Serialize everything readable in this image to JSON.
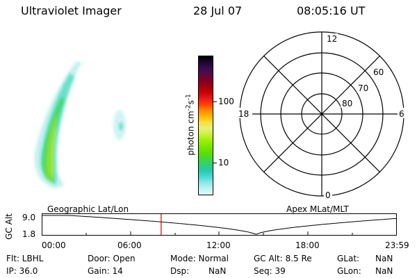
{
  "header": {
    "instrument": "Ultraviolet Imager",
    "date": "28 Jul 07",
    "time": "08:05:16 UT"
  },
  "colorbar": {
    "label": "photon cm",
    "label_sup1": "-2",
    "label_mid": "s",
    "label_sup2": "-1",
    "tick_100": "100",
    "tick_10": "10",
    "colors": [
      "#000000",
      "#1a0830",
      "#3a0a50",
      "#5a0a40",
      "#800020",
      "#a00010",
      "#c80000",
      "#e81818",
      "#ff4000",
      "#ff8a00",
      "#ffb800",
      "#f5e040",
      "#e6f07a",
      "#c8f23a",
      "#9cf000",
      "#78e800",
      "#5ce000",
      "#40d838",
      "#30d07a",
      "#28c8b0",
      "#48d8d0",
      "#8ae8e8",
      "#c0f2f2",
      "#e4f8f8"
    ]
  },
  "polar": {
    "mlt_12": "12",
    "mlt_18": "18",
    "mlt_6": "6",
    "mlt_0": "0",
    "lat_60": "60",
    "lat_70": "70",
    "lat_80": "80"
  },
  "altplot": {
    "left_title": "Geographic Lat/Lon",
    "right_title": "Apex MLat/MLT",
    "ylabel": "GC Alt",
    "y_top": "9.0",
    "y_bottom": "1.8",
    "x_ticks": [
      "00:00",
      "06:00",
      "12:00",
      "18:00",
      "23:59"
    ],
    "marker_hour": 8.088,
    "marker_color": "#cc0000"
  },
  "info": {
    "flt": "Flt: LBHL",
    "door": "Door: Open",
    "mode": "Mode: Normal",
    "gcalt": "GC Alt: 8.5 Re",
    "glat_label": "GLat:",
    "glat_val": "NaN",
    "ip": "IP: 36.0",
    "gain": "Gain: 14",
    "dsp": "Dsp:",
    "dsp_val": "NaN",
    "seq": "Seq: 39",
    "glon_label": "GLon:",
    "glon_val": "NaN"
  }
}
